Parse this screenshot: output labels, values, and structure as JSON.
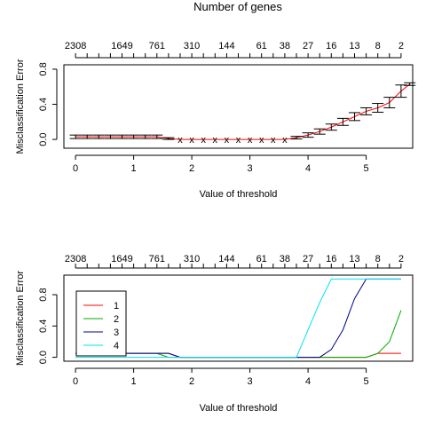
{
  "title": "Number of genes",
  "chart_data": [
    {
      "type": "line",
      "title": "Number of genes",
      "xlabel": "Value of threshold",
      "ylabel": "Misclassification Error",
      "xlim": [
        -0.2,
        5.8
      ],
      "ylim": [
        -0.1,
        0.85
      ],
      "x_ticks": [
        0,
        1,
        2,
        3,
        4,
        5
      ],
      "y_ticks": [
        0.0,
        0.4,
        0.8
      ],
      "y_tick_labels": [
        "0.0",
        "0.4",
        "0.8"
      ],
      "top_axis_ticks": [
        0,
        0.2,
        0.4,
        0.6,
        0.8,
        1.0,
        1.2,
        1.4,
        1.6,
        1.8,
        2.0,
        2.2,
        2.4,
        2.6,
        2.8,
        3.0,
        3.2,
        3.4,
        3.6,
        3.8,
        4.0,
        4.2,
        4.4,
        4.6,
        4.8,
        5.0,
        5.2,
        5.4,
        5.6
      ],
      "top_axis_labels": [
        {
          "x": 0,
          "label": "2308"
        },
        {
          "x": 0.8,
          "label": "1649"
        },
        {
          "x": 1.4,
          "label": "761"
        },
        {
          "x": 2.0,
          "label": "310"
        },
        {
          "x": 2.6,
          "label": "144"
        },
        {
          "x": 3.2,
          "label": "61"
        },
        {
          "x": 3.6,
          "label": "38"
        },
        {
          "x": 4.0,
          "label": "27"
        },
        {
          "x": 4.4,
          "label": "16"
        },
        {
          "x": 4.8,
          "label": "13"
        },
        {
          "x": 5.2,
          "label": "8"
        },
        {
          "x": 5.6,
          "label": "2"
        }
      ],
      "series": [
        {
          "x": [
            0,
            0.2,
            0.4,
            0.6,
            0.8,
            1.0,
            1.2,
            1.4,
            1.6,
            1.8,
            2.0,
            2.2,
            2.4,
            2.6,
            2.8,
            3.0,
            3.2,
            3.4,
            3.6,
            3.8,
            4.0,
            4.2,
            4.4,
            4.6,
            4.8,
            5.0,
            5.2,
            5.4,
            5.6
          ],
          "values": [
            0.03,
            0.03,
            0.03,
            0.03,
            0.03,
            0.03,
            0.03,
            0.03,
            0.01,
            0.0,
            0.0,
            0.0,
            0.0,
            0.0,
            0.0,
            0.0,
            0.0,
            0.0,
            0.0,
            0.02,
            0.05,
            0.09,
            0.14,
            0.2,
            0.26,
            0.32,
            0.36,
            0.42,
            0.55
          ],
          "errors": [
            0.02,
            0.02,
            0.02,
            0.02,
            0.02,
            0.02,
            0.02,
            0.02,
            0.01,
            0.0,
            0.0,
            0.0,
            0.0,
            0.0,
            0.0,
            0.0,
            0.0,
            0.0,
            0.0,
            0.015,
            0.025,
            0.03,
            0.035,
            0.04,
            0.045,
            0.04,
            0.05,
            0.06,
            0.07
          ],
          "marker": "x",
          "color": "#ff0000"
        }
      ],
      "end_point": {
        "x": 5.75,
        "value": 0.63,
        "error": 0.015
      }
    },
    {
      "type": "line",
      "xlabel": "Value of threshold",
      "ylabel": "Misclassification Error",
      "xlim": [
        -0.2,
        5.8
      ],
      "ylim": [
        -0.05,
        1.05
      ],
      "x_ticks": [
        0,
        1,
        2,
        3,
        4,
        5
      ],
      "y_ticks": [
        0.0,
        0.4,
        0.8
      ],
      "y_tick_labels": [
        "0.0",
        "0.4",
        "0.8"
      ],
      "top_axis_ticks": [
        0,
        0.2,
        0.4,
        0.6,
        0.8,
        1.0,
        1.2,
        1.4,
        1.6,
        1.8,
        2.0,
        2.2,
        2.4,
        2.6,
        2.8,
        3.0,
        3.2,
        3.4,
        3.6,
        3.8,
        4.0,
        4.2,
        4.4,
        4.6,
        4.8,
        5.0,
        5.2,
        5.4,
        5.6
      ],
      "top_axis_labels": [
        {
          "x": 0,
          "label": "2308"
        },
        {
          "x": 0.8,
          "label": "1649"
        },
        {
          "x": 1.4,
          "label": "761"
        },
        {
          "x": 2.0,
          "label": "310"
        },
        {
          "x": 2.6,
          "label": "144"
        },
        {
          "x": 3.2,
          "label": "61"
        },
        {
          "x": 3.6,
          "label": "38"
        },
        {
          "x": 4.0,
          "label": "27"
        },
        {
          "x": 4.4,
          "label": "16"
        },
        {
          "x": 4.8,
          "label": "13"
        },
        {
          "x": 5.2,
          "label": "8"
        },
        {
          "x": 5.6,
          "label": "2"
        }
      ],
      "legend": {
        "position": "bottom-left",
        "entries": [
          "1",
          "2",
          "3",
          "4"
        ]
      },
      "series": [
        {
          "name": "1",
          "color": "#ff0000",
          "x": [
            0,
            0.2,
            0.4,
            0.6,
            0.8,
            1.0,
            1.2,
            1.4,
            1.6,
            1.8,
            2.0,
            2.4,
            2.8,
            3.2,
            3.6,
            4.0,
            4.4,
            4.8,
            5.0,
            5.2,
            5.4,
            5.6
          ],
          "values": [
            0.05,
            0.05,
            0.05,
            0.05,
            0.05,
            0.05,
            0.05,
            0.05,
            0.05,
            0.0,
            0.0,
            0.0,
            0.0,
            0.0,
            0.0,
            0.0,
            0.0,
            0.0,
            0.0,
            0.05,
            0.05,
            0.05
          ]
        },
        {
          "name": "2",
          "color": "#00aa00",
          "x": [
            0,
            0.4,
            0.8,
            1.0,
            1.2,
            1.4,
            1.6,
            1.8,
            2.0,
            2.4,
            2.8,
            3.2,
            3.6,
            4.0,
            4.4,
            4.8,
            5.0,
            5.2,
            5.4,
            5.6
          ],
          "values": [
            0.05,
            0.05,
            0.05,
            0.05,
            0.05,
            0.05,
            0.0,
            0.0,
            0.0,
            0.0,
            0.0,
            0.0,
            0.0,
            0.0,
            0.0,
            0.0,
            0.0,
            0.05,
            0.2,
            0.6
          ]
        },
        {
          "name": "3",
          "color": "#00008b",
          "x": [
            0,
            0.4,
            0.8,
            1.0,
            1.2,
            1.4,
            1.6,
            1.8,
            2.0,
            2.4,
            2.8,
            3.2,
            3.6,
            4.0,
            4.2,
            4.4,
            4.6,
            4.8,
            5.0,
            5.2,
            5.4,
            5.6
          ],
          "values": [
            0.05,
            0.05,
            0.05,
            0.05,
            0.05,
            0.05,
            0.05,
            0.0,
            0.0,
            0.0,
            0.0,
            0.0,
            0.0,
            0.0,
            0.0,
            0.1,
            0.35,
            0.75,
            1.0,
            1.0,
            1.0,
            1.0
          ]
        },
        {
          "name": "4",
          "color": "#00e5ee",
          "x": [
            0,
            0.4,
            0.8,
            1.0,
            1.2,
            1.4,
            1.6,
            1.8,
            2.0,
            2.4,
            2.8,
            3.2,
            3.6,
            3.8,
            4.0,
            4.2,
            4.4,
            4.6,
            4.8,
            5.0,
            5.2,
            5.4,
            5.6
          ],
          "values": [
            0.0,
            0.0,
            0.0,
            0.0,
            0.0,
            0.0,
            0.0,
            0.0,
            0.0,
            0.0,
            0.0,
            0.0,
            0.0,
            0.0,
            0.35,
            0.7,
            1.0,
            1.0,
            1.0,
            1.0,
            1.0,
            1.0,
            1.0
          ]
        }
      ]
    }
  ]
}
